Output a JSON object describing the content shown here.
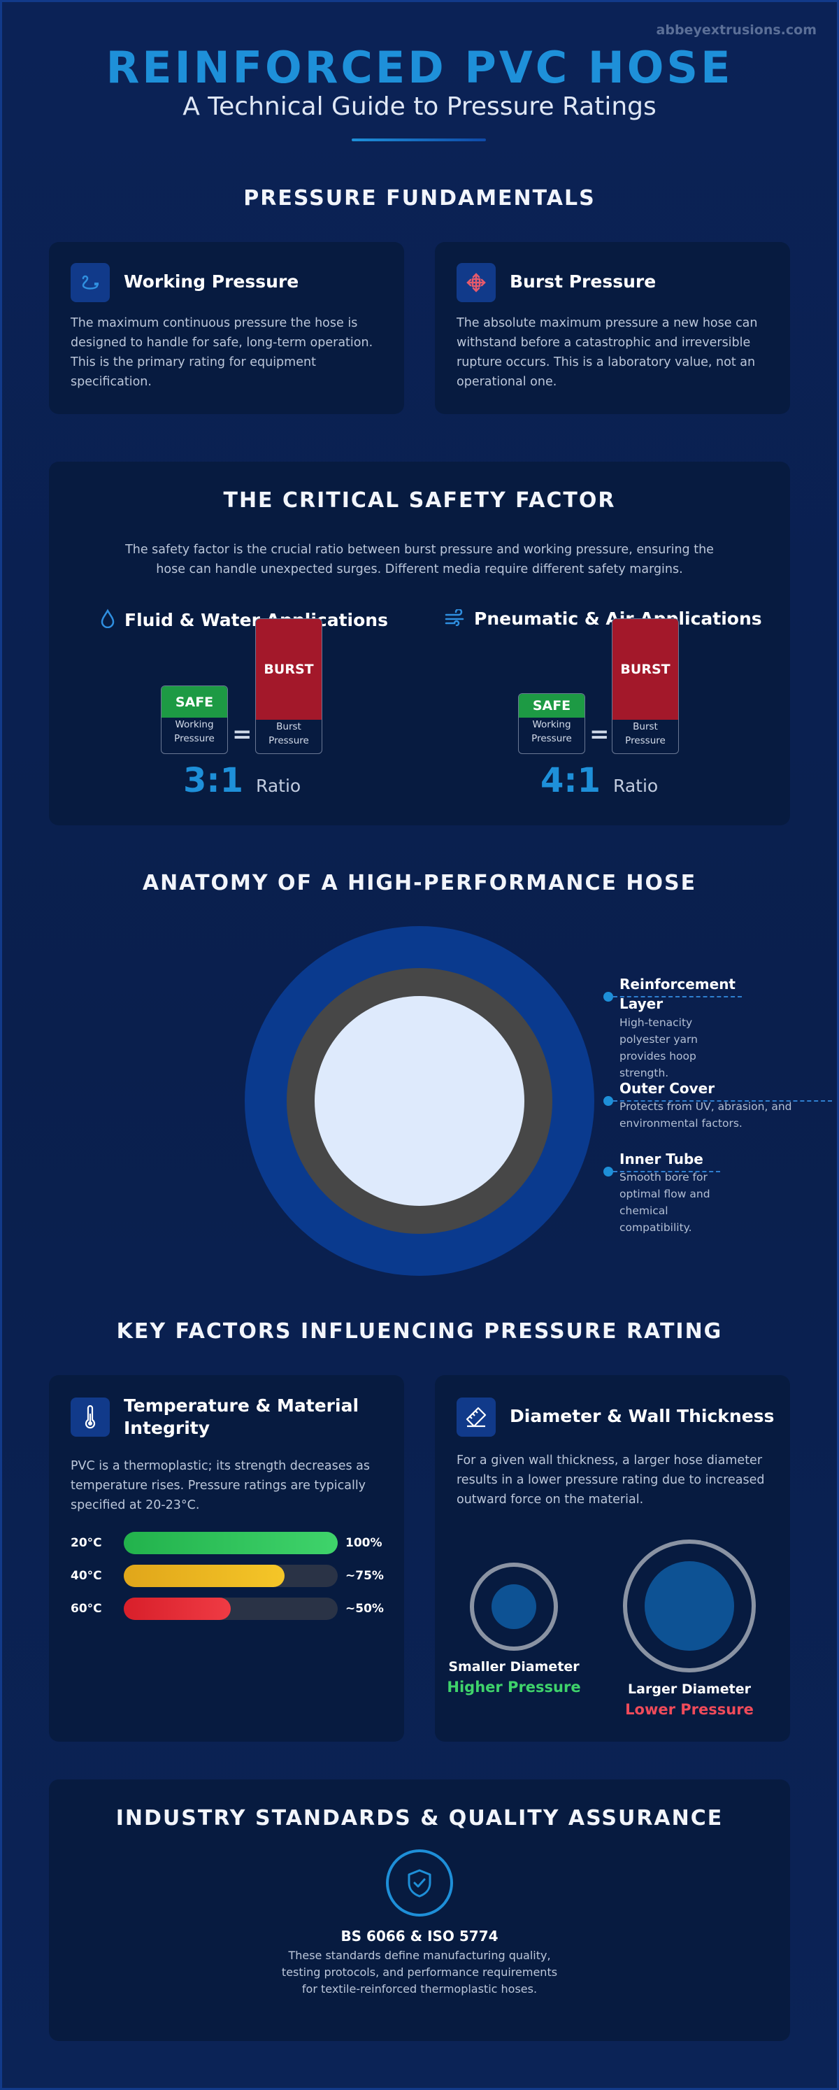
{
  "header": {
    "site": "abbeyextrusions.com",
    "title": "REINFORCED PVC HOSE",
    "subtitle": "A Technical Guide to Pressure Ratings"
  },
  "fundamentals": {
    "heading": "PRESSURE FUNDAMENTALS",
    "working": {
      "icon": "hose-icon",
      "title": "Working Pressure",
      "body": "The maximum continuous pressure the hose is designed to handle for safe, long-term operation. This is the primary rating for equipment specification."
    },
    "burst": {
      "icon": "burst-icon",
      "title": "Burst Pressure",
      "body": "The absolute maximum pressure a new hose can withstand before a catastrophic and irreversible rupture occurs. This is a laboratory value, not an operational one."
    }
  },
  "safety": {
    "heading": "THE CRITICAL SAFETY FACTOR",
    "intro": "The safety factor is the crucial ratio between burst pressure and working pressure, ensuring the hose can handle unexpected surges. Different media require different safety margins.",
    "fluid": {
      "icon": "water-drop-icon",
      "title": "Fluid & Water Applications",
      "safe_label": "SAFE",
      "working_label": "Working Pressure",
      "burst_label": "BURST",
      "burst_pressure_label": "Burst Pressure",
      "ratio": "3:1",
      "ratio_word": "Ratio"
    },
    "pneumatic": {
      "icon": "wind-icon",
      "title": "Pneumatic & Air Applications",
      "safe_label": "SAFE",
      "working_label": "Working Pressure",
      "burst_label": "BURST",
      "burst_pressure_label": "Burst Pressure",
      "ratio": "4:1",
      "ratio_word": "Ratio"
    },
    "eq_sign": "="
  },
  "anatomy": {
    "heading": "ANATOMY OF A HIGH-PERFORMANCE HOSE",
    "layers": [
      {
        "title": "Reinforcement Layer",
        "body": "High-tenacity polyester yarn provides hoop strength."
      },
      {
        "title": "Outer Cover",
        "body": "Protects from UV, abrasion, and environmental factors."
      },
      {
        "title": "Inner Tube",
        "body": "Smooth bore for optimal flow and chemical compatibility."
      }
    ],
    "colors": {
      "cover": "#0a3a8e",
      "reinforcement": "#474747",
      "tube": "#deeafc"
    }
  },
  "factors": {
    "heading": "KEY FACTORS INFLUENCING PRESSURE RATING",
    "temperature": {
      "icon": "thermometer-icon",
      "title": "Temperature & Material Integrity",
      "body": "PVC is a thermoplastic; its strength decreases as temperature rises. Pressure ratings are typically specified at 20-23°C.",
      "bars": [
        {
          "label": "20°C",
          "value": 1.0,
          "pct": "100%",
          "color_a": "#22b24c",
          "color_b": "#3fd36b"
        },
        {
          "label": "40°C",
          "value": 0.75,
          "pct": "~75%",
          "color_a": "#e0a61a",
          "color_b": "#f5c628"
        },
        {
          "label": "60°C",
          "value": 0.5,
          "pct": "~50%",
          "color_a": "#d81f2a",
          "color_b": "#ef3b44"
        }
      ]
    },
    "diameter": {
      "icon": "ruler-icon",
      "title": "Diameter & Wall Thickness",
      "body": "For a given wall thickness, a larger hose diameter results in a lower pressure rating due to increased outward force on the material.",
      "small_label": "Smaller Diameter",
      "small_result": "Higher Pressure",
      "large_label": "Larger Diameter",
      "large_result": "Lower Pressure",
      "colors": {
        "higher": "#3fd36b",
        "lower": "#ef4b5a"
      }
    }
  },
  "standards": {
    "heading": "INDUSTRY STANDARDS & QUALITY ASSURANCE",
    "icon": "shield-check-icon",
    "title": "BS 6066 & ISO 5774",
    "body": "These standards define manufacturing quality, testing protocols, and performance requirements for textile-reinforced thermoplastic hoses."
  }
}
